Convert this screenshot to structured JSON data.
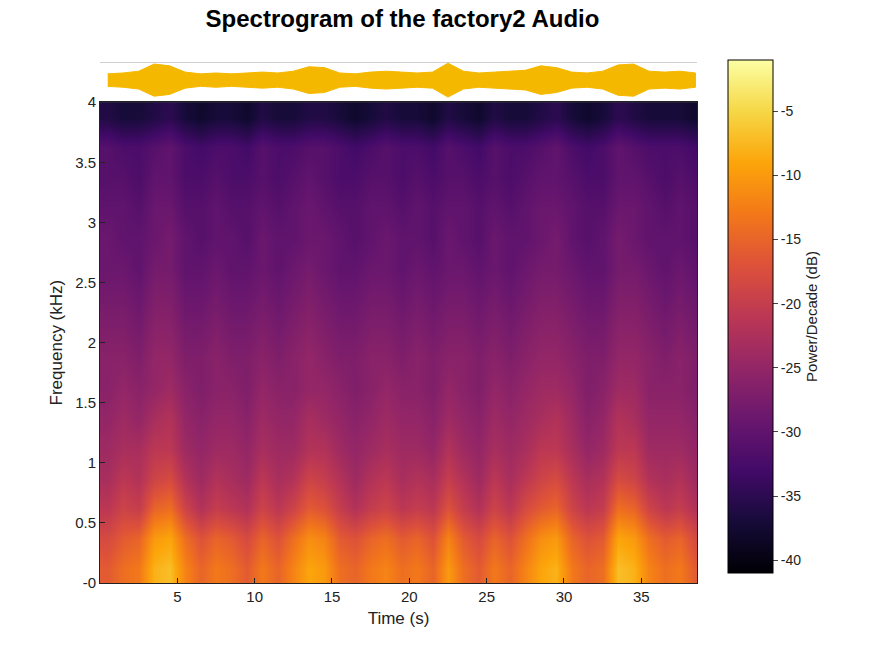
{
  "chart_data": {
    "type": "heatmap",
    "title": "Spectrogram of the factory2 Audio",
    "x_label": "Time (s)",
    "y_label": "Frequency (kHz)",
    "x": [
      0.5,
      1.5,
      2.5,
      3.5,
      4.5,
      5.5,
      6.5,
      7.5,
      8.5,
      9.5,
      10.5,
      11.5,
      12.5,
      13.5,
      14.5,
      15.5,
      16.5,
      17.5,
      18.5,
      19.5,
      20.5,
      21.5,
      22.5,
      23.5,
      24.5,
      25.5,
      26.5,
      27.5,
      28.5,
      29.5,
      30.5,
      31.5,
      32.5,
      33.5,
      34.5,
      35.5,
      36.5,
      37.5,
      38.5
    ],
    "y": [
      0.125,
      0.375,
      0.625,
      0.875,
      1.125,
      1.375,
      1.625,
      1.875,
      2.125,
      2.375,
      2.625,
      2.875,
      3.125,
      3.375,
      3.625,
      3.875
    ],
    "z": [
      [
        -16,
        -14,
        -13,
        -8,
        -7,
        -12,
        -15,
        -13,
        -14,
        -16,
        -13,
        -15,
        -12,
        -9,
        -10,
        -14,
        -15,
        -13,
        -12,
        -14,
        -13,
        -15,
        -10,
        -14,
        -16,
        -13,
        -15,
        -12,
        -9,
        -8,
        -13,
        -15,
        -14,
        -7,
        -8,
        -12,
        -14,
        -13,
        -16
      ],
      [
        -18,
        -16,
        -15,
        -10,
        -9,
        -14,
        -17,
        -15,
        -16,
        -18,
        -15,
        -17,
        -14,
        -11,
        -12,
        -16,
        -17,
        -15,
        -14,
        -16,
        -15,
        -17,
        -12,
        -16,
        -18,
        -15,
        -17,
        -14,
        -11,
        -10,
        -15,
        -17,
        -16,
        -9,
        -10,
        -14,
        -16,
        -15,
        -18
      ],
      [
        -21,
        -19,
        -20,
        -15,
        -14,
        -19,
        -22,
        -20,
        -21,
        -22,
        -19,
        -21,
        -19,
        -16,
        -17,
        -20,
        -22,
        -20,
        -19,
        -21,
        -20,
        -21,
        -17,
        -20,
        -22,
        -19,
        -21,
        -18,
        -16,
        -15,
        -19,
        -21,
        -20,
        -14,
        -15,
        -19,
        -21,
        -20,
        -22
      ],
      [
        -23,
        -21,
        -22,
        -19,
        -18,
        -22,
        -24,
        -22,
        -23,
        -24,
        -21,
        -23,
        -22,
        -19,
        -20,
        -22,
        -24,
        -22,
        -21,
        -23,
        -22,
        -23,
        -20,
        -22,
        -24,
        -21,
        -23,
        -21,
        -19,
        -18,
        -21,
        -23,
        -22,
        -18,
        -19,
        -22,
        -23,
        -22,
        -24
      ],
      [
        -24,
        -23,
        -23,
        -21,
        -21,
        -24,
        -25,
        -24,
        -24,
        -25,
        -23,
        -24,
        -24,
        -22,
        -22,
        -24,
        -25,
        -24,
        -23,
        -24,
        -24,
        -25,
        -22,
        -24,
        -25,
        -23,
        -24,
        -23,
        -21,
        -21,
        -23,
        -25,
        -24,
        -21,
        -21,
        -24,
        -24,
        -24,
        -25
      ],
      [
        -25,
        -24,
        -25,
        -23,
        -22,
        -25,
        -26,
        -25,
        -25,
        -26,
        -24,
        -25,
        -25,
        -23,
        -24,
        -25,
        -26,
        -25,
        -24,
        -25,
        -25,
        -26,
        -24,
        -25,
        -26,
        -24,
        -25,
        -24,
        -23,
        -22,
        -24,
        -26,
        -25,
        -22,
        -23,
        -25,
        -25,
        -25,
        -26
      ],
      [
        -26,
        -25,
        -26,
        -25,
        -24,
        -26,
        -27,
        -26,
        -26,
        -27,
        -25,
        -26,
        -26,
        -25,
        -25,
        -26,
        -27,
        -26,
        -25,
        -26,
        -26,
        -27,
        -25,
        -26,
        -27,
        -25,
        -26,
        -25,
        -24,
        -24,
        -25,
        -27,
        -26,
        -24,
        -24,
        -26,
        -26,
        -26,
        -27
      ],
      [
        -26,
        -26,
        -27,
        -25,
        -25,
        -27,
        -27,
        -26,
        -27,
        -27,
        -26,
        -27,
        -26,
        -25,
        -26,
        -27,
        -27,
        -26,
        -26,
        -27,
        -26,
        -27,
        -26,
        -26,
        -27,
        -26,
        -27,
        -26,
        -25,
        -25,
        -26,
        -27,
        -27,
        -25,
        -25,
        -26,
        -27,
        -26,
        -27
      ],
      [
        -27,
        -27,
        -28,
        -26,
        -26,
        -28,
        -28,
        -27,
        -28,
        -28,
        -27,
        -28,
        -27,
        -26,
        -27,
        -28,
        -28,
        -27,
        -27,
        -28,
        -27,
        -28,
        -27,
        -27,
        -28,
        -27,
        -28,
        -27,
        -26,
        -26,
        -27,
        -28,
        -28,
        -26,
        -26,
        -27,
        -28,
        -27,
        -28
      ],
      [
        -28,
        -28,
        -29,
        -27,
        -27,
        -29,
        -29,
        -28,
        -29,
        -29,
        -28,
        -29,
        -28,
        -27,
        -28,
        -29,
        -29,
        -28,
        -28,
        -29,
        -28,
        -29,
        -28,
        -28,
        -29,
        -28,
        -29,
        -28,
        -27,
        -27,
        -28,
        -29,
        -29,
        -27,
        -27,
        -28,
        -29,
        -28,
        -29
      ],
      [
        -29,
        -29,
        -30,
        -28,
        -28,
        -30,
        -30,
        -29,
        -30,
        -30,
        -29,
        -30,
        -29,
        -28,
        -29,
        -30,
        -30,
        -29,
        -29,
        -30,
        -29,
        -30,
        -29,
        -29,
        -30,
        -29,
        -30,
        -29,
        -28,
        -28,
        -29,
        -30,
        -30,
        -28,
        -28,
        -29,
        -30,
        -29,
        -30
      ],
      [
        -29,
        -30,
        -30,
        -29,
        -28,
        -30,
        -31,
        -30,
        -30,
        -31,
        -29,
        -30,
        -30,
        -29,
        -29,
        -30,
        -31,
        -30,
        -29,
        -30,
        -30,
        -31,
        -29,
        -30,
        -31,
        -29,
        -30,
        -30,
        -29,
        -28,
        -30,
        -31,
        -30,
        -28,
        -29,
        -30,
        -30,
        -30,
        -31
      ],
      [
        -30,
        -30,
        -31,
        -29,
        -29,
        -31,
        -31,
        -30,
        -31,
        -31,
        -30,
        -31,
        -30,
        -29,
        -30,
        -31,
        -31,
        -30,
        -30,
        -31,
        -30,
        -31,
        -30,
        -30,
        -31,
        -30,
        -31,
        -30,
        -29,
        -29,
        -30,
        -31,
        -31,
        -29,
        -29,
        -30,
        -31,
        -30,
        -31
      ],
      [
        -31,
        -31,
        -32,
        -30,
        -30,
        -32,
        -32,
        -31,
        -32,
        -32,
        -31,
        -32,
        -31,
        -30,
        -31,
        -32,
        -32,
        -31,
        -31,
        -32,
        -31,
        -32,
        -31,
        -31,
        -32,
        -31,
        -32,
        -31,
        -30,
        -30,
        -31,
        -32,
        -32,
        -30,
        -30,
        -31,
        -32,
        -31,
        -32
      ],
      [
        -31,
        -32,
        -32,
        -31,
        -30,
        -32,
        -33,
        -32,
        -32,
        -33,
        -31,
        -32,
        -32,
        -31,
        -31,
        -32,
        -33,
        -32,
        -31,
        -32,
        -32,
        -33,
        -31,
        -32,
        -33,
        -31,
        -32,
        -32,
        -31,
        -30,
        -32,
        -33,
        -32,
        -30,
        -31,
        -32,
        -32,
        -32,
        -33
      ],
      [
        -36,
        -37,
        -37,
        -36,
        -35,
        -37,
        -38,
        -37,
        -37,
        -38,
        -36,
        -37,
        -37,
        -36,
        -36,
        -37,
        -38,
        -37,
        -36,
        -37,
        -37,
        -38,
        -36,
        -37,
        -38,
        -36,
        -37,
        -37,
        -36,
        -35,
        -37,
        -38,
        -37,
        -35,
        -36,
        -37,
        -37,
        -37,
        -38
      ]
    ],
    "xlim": [
      0,
      38.6
    ],
    "xticks": [
      5,
      10,
      15,
      20,
      25,
      30,
      35
    ],
    "ylim": [
      0,
      4
    ],
    "yticks": [
      {
        "value": 0,
        "label": "-0"
      },
      0.5,
      1,
      1.5,
      2,
      2.5,
      3,
      3.5,
      4
    ],
    "colorbar": {
      "title": "Power/Decade (dB)",
      "range": [
        -41,
        -1
      ],
      "ticks": [
        -40,
        -35,
        -30,
        -25,
        -20,
        -15,
        -10,
        -5
      ]
    },
    "waveform": {
      "x": [
        0.5,
        1.5,
        2.5,
        3.5,
        4.5,
        5.5,
        6.5,
        7.5,
        8.5,
        9.5,
        10.5,
        11.5,
        12.5,
        13.5,
        14.5,
        15.5,
        16.5,
        17.5,
        18.5,
        19.5,
        20.5,
        21.5,
        22.5,
        23.5,
        24.5,
        25.5,
        26.5,
        27.5,
        28.5,
        29.5,
        30.5,
        31.5,
        32.5,
        33.5,
        34.5,
        35.5,
        36.5,
        37.5,
        38.5
      ],
      "amplitude": [
        0.35,
        0.4,
        0.5,
        0.9,
        0.8,
        0.45,
        0.35,
        0.4,
        0.35,
        0.4,
        0.45,
        0.4,
        0.5,
        0.75,
        0.7,
        0.4,
        0.35,
        0.45,
        0.5,
        0.45,
        0.4,
        0.45,
        0.95,
        0.5,
        0.4,
        0.45,
        0.5,
        0.55,
        0.8,
        0.7,
        0.45,
        0.4,
        0.5,
        0.85,
        0.9,
        0.5,
        0.45,
        0.5,
        0.4
      ],
      "ylim": [
        -1,
        1
      ],
      "color": "#f5b800"
    }
  }
}
